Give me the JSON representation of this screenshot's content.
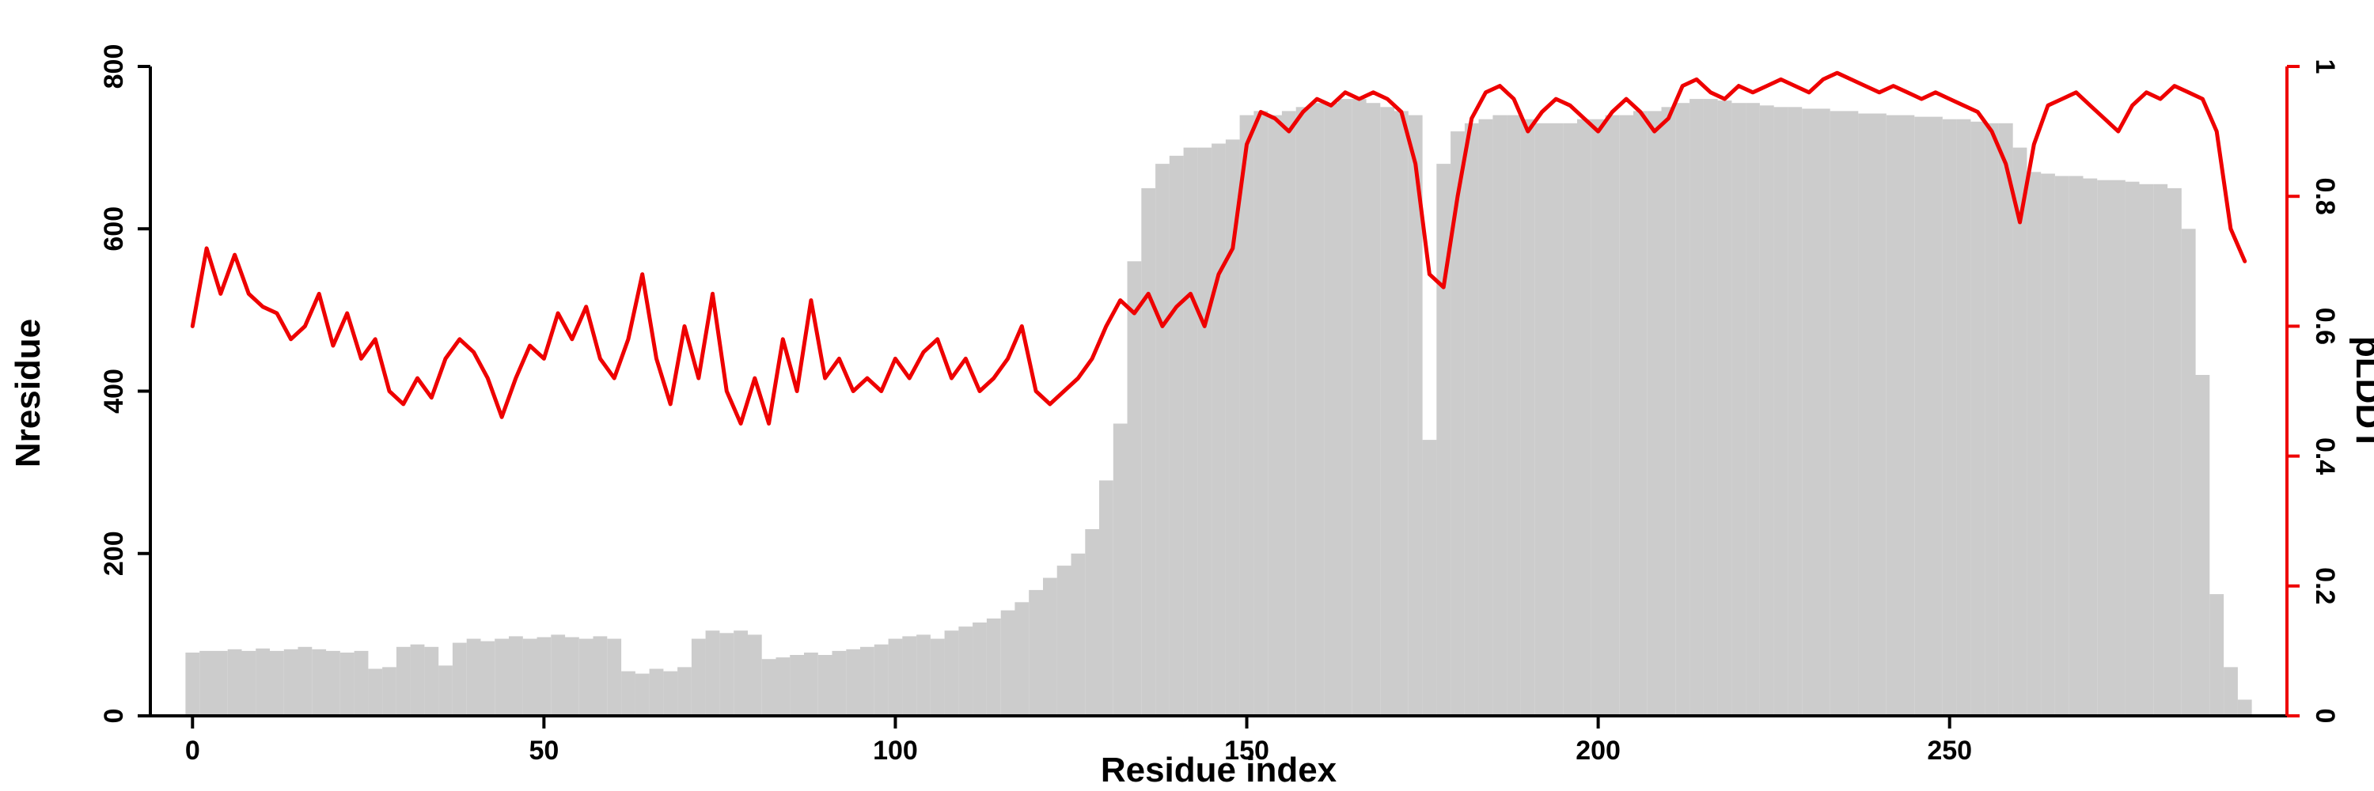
{
  "chart_data": {
    "type": "composite",
    "xlabel": "Residue index",
    "ylabel_left": "Nresidue",
    "ylabel_right": "pLDDT",
    "x_start": 0,
    "x_step": 2,
    "xlim": [
      0,
      292
    ],
    "ylim_left": [
      0,
      800
    ],
    "ylim_right": [
      0,
      1
    ],
    "x_ticks": [
      0,
      50,
      100,
      150,
      200,
      250
    ],
    "y_ticks_left": [
      0,
      200,
      400,
      600,
      800
    ],
    "y_ticks_right": [
      0,
      0.2,
      0.4,
      0.6,
      0.8,
      1
    ],
    "grid": false,
    "legend": "none",
    "colors": {
      "bar": "#cccccc",
      "line": "#ee0000",
      "axis_left": "#000000",
      "axis_right": "#ee0000"
    },
    "series": [
      {
        "name": "Nresidue",
        "type": "bar",
        "axis": "left",
        "values": [
          78,
          80,
          80,
          82,
          80,
          83,
          80,
          82,
          85,
          82,
          80,
          78,
          80,
          58,
          60,
          85,
          88,
          85,
          62,
          90,
          95,
          92,
          95,
          98,
          95,
          97,
          100,
          97,
          95,
          98,
          95,
          55,
          52,
          58,
          55,
          60,
          95,
          105,
          102,
          105,
          100,
          70,
          72,
          75,
          78,
          75,
          80,
          82,
          85,
          88,
          95,
          98,
          100,
          95,
          105,
          110,
          115,
          120,
          130,
          140,
          155,
          170,
          185,
          200,
          230,
          290,
          360,
          560,
          650,
          680,
          690,
          700,
          700,
          705,
          710,
          740,
          745,
          740,
          745,
          750,
          755,
          755,
          760,
          760,
          755,
          750,
          745,
          740,
          340,
          680,
          720,
          730,
          735,
          740,
          740,
          735,
          730,
          730,
          730,
          735,
          735,
          740,
          740,
          745,
          745,
          750,
          755,
          760,
          760,
          758,
          755,
          755,
          752,
          750,
          750,
          748,
          748,
          745,
          745,
          742,
          742,
          740,
          740,
          738,
          738,
          735,
          735,
          732,
          730,
          730,
          700,
          670,
          668,
          665,
          665,
          662,
          660,
          660,
          658,
          655,
          655,
          650,
          600,
          420,
          150,
          60,
          20
        ]
      },
      {
        "name": "pLDDT",
        "type": "line",
        "axis": "right",
        "values": [
          0.6,
          0.72,
          0.65,
          0.71,
          0.65,
          0.63,
          0.62,
          0.58,
          0.6,
          0.65,
          0.57,
          0.62,
          0.55,
          0.58,
          0.5,
          0.48,
          0.52,
          0.49,
          0.55,
          0.58,
          0.56,
          0.52,
          0.46,
          0.52,
          0.57,
          0.55,
          0.62,
          0.58,
          0.63,
          0.55,
          0.52,
          0.58,
          0.68,
          0.55,
          0.48,
          0.6,
          0.52,
          0.65,
          0.5,
          0.45,
          0.52,
          0.45,
          0.58,
          0.5,
          0.64,
          0.52,
          0.55,
          0.5,
          0.52,
          0.5,
          0.55,
          0.52,
          0.56,
          0.58,
          0.52,
          0.55,
          0.5,
          0.52,
          0.55,
          0.6,
          0.5,
          0.48,
          0.5,
          0.52,
          0.55,
          0.6,
          0.64,
          0.62,
          0.65,
          0.6,
          0.63,
          0.65,
          0.6,
          0.68,
          0.72,
          0.88,
          0.93,
          0.92,
          0.9,
          0.93,
          0.95,
          0.94,
          0.96,
          0.95,
          0.96,
          0.95,
          0.93,
          0.85,
          0.68,
          0.66,
          0.8,
          0.92,
          0.96,
          0.97,
          0.95,
          0.9,
          0.93,
          0.95,
          0.94,
          0.92,
          0.9,
          0.93,
          0.95,
          0.93,
          0.9,
          0.92,
          0.97,
          0.98,
          0.96,
          0.95,
          0.97,
          0.96,
          0.97,
          0.98,
          0.97,
          0.96,
          0.98,
          0.99,
          0.98,
          0.97,
          0.96,
          0.97,
          0.96,
          0.95,
          0.96,
          0.95,
          0.94,
          0.93,
          0.9,
          0.85,
          0.76,
          0.88,
          0.94,
          0.95,
          0.96,
          0.94,
          0.92,
          0.9,
          0.94,
          0.96,
          0.95,
          0.97,
          0.96,
          0.95,
          0.9,
          0.75,
          0.7
        ]
      }
    ]
  }
}
